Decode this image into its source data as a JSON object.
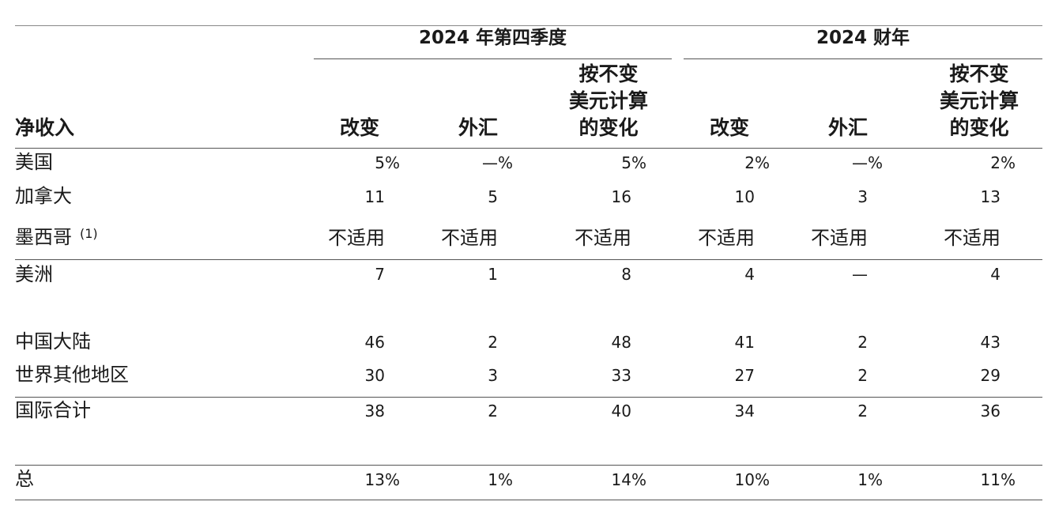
{
  "header": {
    "row_title": "净收入",
    "groups": [
      "2024 年第四季度",
      "2024 财年"
    ],
    "columns": [
      [
        "改变"
      ],
      [
        "外汇"
      ],
      [
        "按不变",
        "美元计算",
        "的变化"
      ],
      [
        "改变"
      ],
      [
        "外汇"
      ],
      [
        "按不变",
        "美元计算",
        "的变化"
      ]
    ]
  },
  "rows": [
    {
      "label": "美国",
      "sup": "",
      "values": [
        "5%",
        "—%",
        "5%",
        "2%",
        "—%",
        "2%"
      ]
    },
    {
      "label": "加拿大",
      "sup": "",
      "values": [
        "11",
        "5",
        "16",
        "10",
        "3",
        "13"
      ]
    },
    {
      "label": "墨西哥",
      "sup": "(1)",
      "values": [
        "不适用",
        "不适用",
        "不适用",
        "不适用",
        "不适用",
        "不适用"
      ]
    },
    {
      "label": "美洲",
      "sup": "",
      "values": [
        "7",
        "1",
        "8",
        "4",
        "—",
        "4"
      ]
    },
    {
      "label": "中国大陆",
      "sup": "",
      "values": [
        "46",
        "2",
        "48",
        "41",
        "2",
        "43"
      ]
    },
    {
      "label": "世界其他地区",
      "sup": "",
      "values": [
        "30",
        "3",
        "33",
        "27",
        "2",
        "29"
      ]
    },
    {
      "label": "国际合计",
      "sup": "",
      "values": [
        "38",
        "2",
        "40",
        "34",
        "2",
        "36"
      ]
    },
    {
      "label": "总",
      "sup": "",
      "values": [
        "13%",
        "1%",
        "14%",
        "10%",
        "1%",
        "11%"
      ]
    }
  ]
}
